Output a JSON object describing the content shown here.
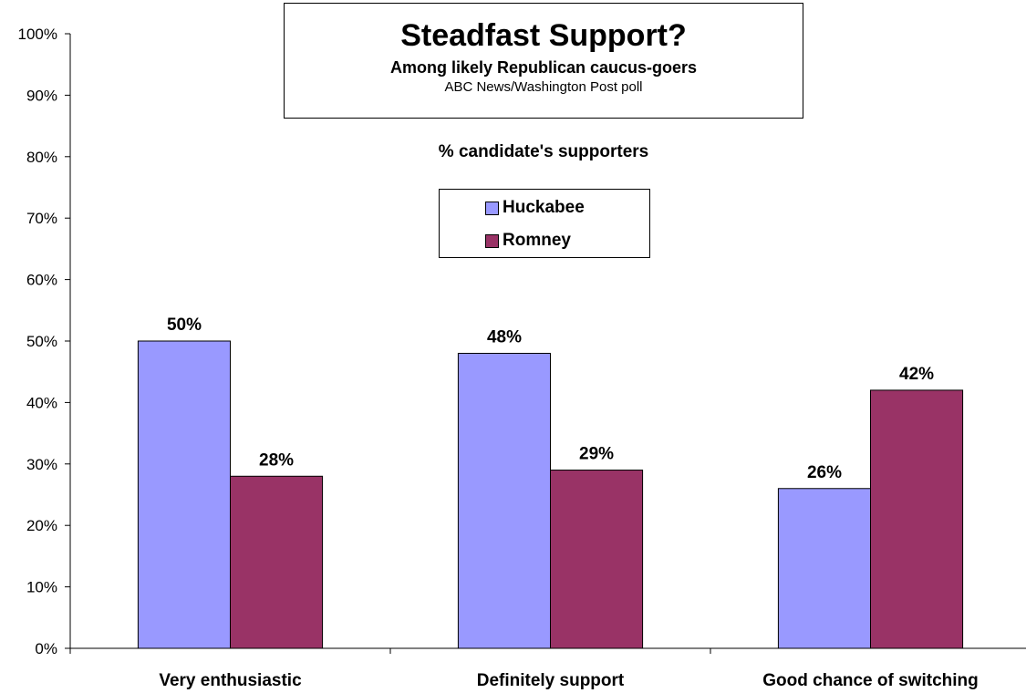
{
  "chart_data": {
    "type": "bar",
    "title": "Steadfast Support?",
    "subtitle": "Among likely Republican caucus-goers",
    "source": "ABC News/Washington Post poll",
    "note": "% candidate's supporters",
    "categories": [
      "Very enthusiastic",
      "Definitely support",
      "Good chance of switching"
    ],
    "series": [
      {
        "name": "Huckabee",
        "values": [
          50,
          48,
          26
        ],
        "color": "#9999ff"
      },
      {
        "name": "Romney",
        "values": [
          28,
          29,
          42
        ],
        "color": "#993366"
      }
    ],
    "data_labels": [
      [
        "50%",
        "48%",
        "26%"
      ],
      [
        "28%",
        "29%",
        "42%"
      ]
    ],
    "ylim": [
      0,
      100
    ],
    "yticks": [
      "0%",
      "10%",
      "20%",
      "30%",
      "40%",
      "50%",
      "60%",
      "70%",
      "80%",
      "90%",
      "100%"
    ],
    "grid": false,
    "legend_position": "top-center"
  }
}
